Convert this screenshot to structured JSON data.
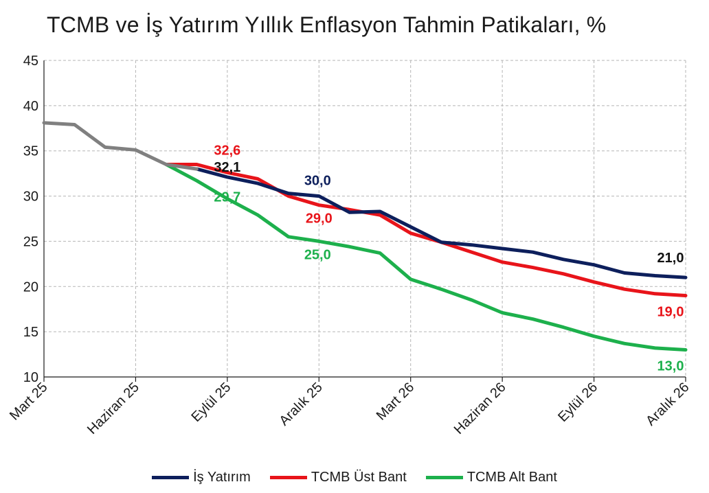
{
  "chart_data": {
    "type": "line",
    "title": "TCMB ve İş Yatırım Yıllık Enflasyon Tahmin Patikaları, %",
    "xlabel": "",
    "ylabel": "",
    "ylim": [
      10,
      45
    ],
    "y_ticks": [
      "10",
      "15",
      "20",
      "25",
      "30",
      "35",
      "40",
      "45"
    ],
    "x_tick_labels": [
      "Mart 25",
      "Haziran 25",
      "Eylül 25",
      "Aralık 25",
      "Mart 26",
      "Haziran 26",
      "Eylül 26",
      "Aralık 26"
    ],
    "grid": true,
    "legend_position": "bottom",
    "months": [
      "2025-03",
      "2025-04",
      "2025-05",
      "2025-06",
      "2025-07",
      "2025-08",
      "2025-09",
      "2025-10",
      "2025-11",
      "2025-12",
      "2026-01",
      "2026-02",
      "2026-03",
      "2026-04",
      "2026-05",
      "2026-06",
      "2026-07",
      "2026-08",
      "2026-09",
      "2026-10",
      "2026-11",
      "2026-12"
    ],
    "actual": {
      "values": [
        38.1,
        37.9,
        35.4,
        35.1,
        33.5,
        33.0
      ]
    },
    "series": [
      {
        "name": "İş Yatırım",
        "color": "#0d1f5c",
        "start_index": 5,
        "values": [
          33.0,
          32.1,
          31.4,
          30.3,
          30.0,
          28.2,
          28.3,
          26.6,
          24.9,
          24.6,
          24.2,
          23.8,
          23.0,
          22.4,
          21.5,
          21.2,
          21.0
        ]
      },
      {
        "name": "TCMB Üst Bant",
        "color": "#e8141a",
        "start_index": 4,
        "values": [
          33.5,
          33.5,
          32.6,
          31.9,
          30.0,
          29.0,
          28.5,
          27.9,
          25.9,
          24.9,
          23.8,
          22.7,
          22.1,
          21.4,
          20.5,
          19.7,
          19.2,
          19.0
        ]
      },
      {
        "name": "TCMB Alt Bant",
        "color": "#1db04c",
        "start_index": 4,
        "values": [
          33.5,
          31.7,
          29.7,
          27.9,
          25.5,
          25.0,
          24.4,
          23.7,
          20.8,
          19.7,
          18.5,
          17.1,
          16.4,
          15.5,
          14.5,
          13.7,
          13.2,
          13.0
        ]
      }
    ],
    "annotations": [
      {
        "text": "32,6",
        "month_index": 6,
        "value": 32.6,
        "color": "#e8141a"
      },
      {
        "text": "32,1",
        "month_index": 6,
        "value": 32.1,
        "color": "#111111"
      },
      {
        "text": "29,7",
        "month_index": 6,
        "value": 29.7,
        "color": "#1db04c"
      },
      {
        "text": "30,0",
        "month_index": 9,
        "value": 30.0,
        "color": "#0d1f5c"
      },
      {
        "text": "29,0",
        "month_index": 9,
        "value": 29.0,
        "color": "#e8141a"
      },
      {
        "text": "25,0",
        "month_index": 9,
        "value": 25.0,
        "color": "#1db04c"
      },
      {
        "text": "21,0",
        "month_index": 21,
        "value": 21.0,
        "color": "#111111"
      },
      {
        "text": "19,0",
        "month_index": 21,
        "value": 19.0,
        "color": "#e8141a"
      },
      {
        "text": "13,0",
        "month_index": 21,
        "value": 13.0,
        "color": "#1db04c"
      }
    ],
    "actual_color": "#808080"
  }
}
